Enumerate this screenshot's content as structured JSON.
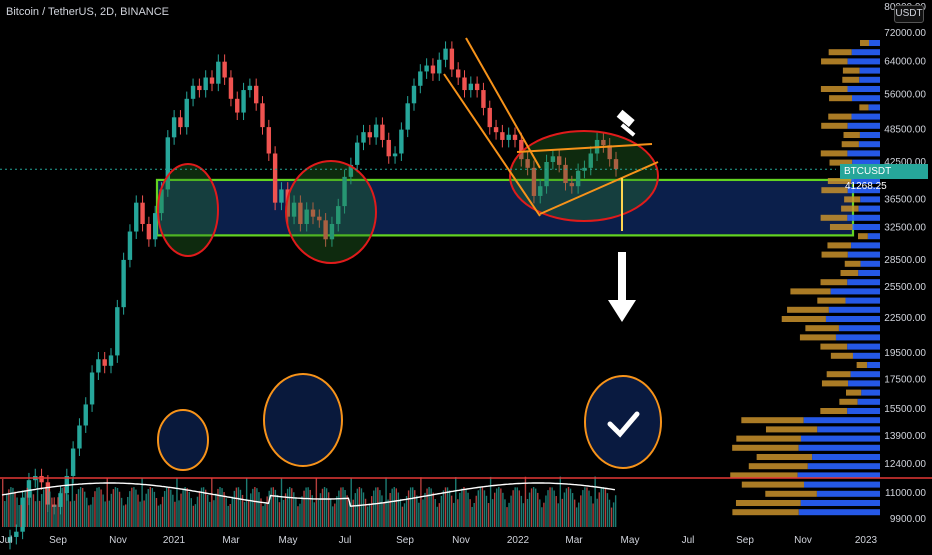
{
  "header": {
    "title": "Bitcoin / TetherUS, 2D, BINANCE"
  },
  "currency_button": "USDT",
  "price_tag": {
    "symbol": "BTCUSDT",
    "price": "41268.25"
  },
  "colors": {
    "up": "#26a69a",
    "down": "#ef5350",
    "green_box": "#63d321",
    "blue_fill": "#0b1f4b",
    "ellipse": "#e01b1b",
    "orange": "#f7931a",
    "vol_blue": "#2962ff",
    "vol_orange": "#c8902b"
  },
  "chart_data": {
    "type": "candlestick",
    "y_scale": "log",
    "price_ticks": [
      "80000.00",
      "72000.00",
      "64000.00",
      "56000.00",
      "48500.00",
      "42500.00",
      "36500.00",
      "32500.00",
      "28500.00",
      "25500.00",
      "22500.00",
      "19500.00",
      "17500.00",
      "15500.00",
      "13900.00",
      "12400.00",
      "11000.00",
      "9900.00"
    ],
    "time_ticks": [
      "Jul",
      "Sep",
      "Nov",
      "2021",
      "Mar",
      "May",
      "Jul",
      "Sep",
      "Nov",
      "2022",
      "Mar",
      "May",
      "Jul",
      "Sep",
      "Nov",
      "2023"
    ],
    "last_price": 41268.25,
    "support_zone": [
      31500,
      39500
    ],
    "series": [
      {
        "name": "price",
        "x_range": [
          "2020-07",
          "2022-04"
        ],
        "close": [
          9200,
          9400,
          10800,
          11600,
          11800,
          11500,
          10500,
          10400,
          11000,
          11800,
          13200,
          14500,
          15800,
          18000,
          19000,
          18500,
          19300,
          23500,
          28500,
          32000,
          36000,
          33000,
          31000,
          34500,
          38000,
          47000,
          51000,
          49000,
          55000,
          58000,
          57000,
          60000,
          58500,
          64000,
          60000,
          55000,
          52000,
          57000,
          58000,
          54000,
          49000,
          44000,
          36000,
          38000,
          34000,
          36000,
          33000,
          35000,
          34000,
          33500,
          31000,
          33000,
          35500,
          40000,
          42000,
          46000,
          48000,
          47000,
          49500,
          46500,
          43500,
          44000,
          48500,
          54000,
          58000,
          61500,
          63000,
          61000,
          64500,
          67500,
          62000,
          60000,
          57000,
          58500,
          57000,
          53000,
          49000,
          48000,
          46500,
          47500,
          46500,
          43000,
          41500,
          37000,
          38500,
          42500,
          43500,
          42000,
          39000,
          38500,
          41000,
          41500,
          44000,
          46500,
          45500,
          43000,
          41268
        ]
      }
    ],
    "volume_profile": "right-side price volume distribution (blue/orange)",
    "annotations": [
      {
        "type": "support_box",
        "range": [
          31500,
          39500
        ]
      },
      {
        "type": "falling_wedge_lines"
      },
      {
        "type": "rising_wedge_lines"
      },
      {
        "type": "arrow_down"
      },
      {
        "type": "check_circle"
      },
      {
        "type": "hammer_icon"
      }
    ]
  }
}
